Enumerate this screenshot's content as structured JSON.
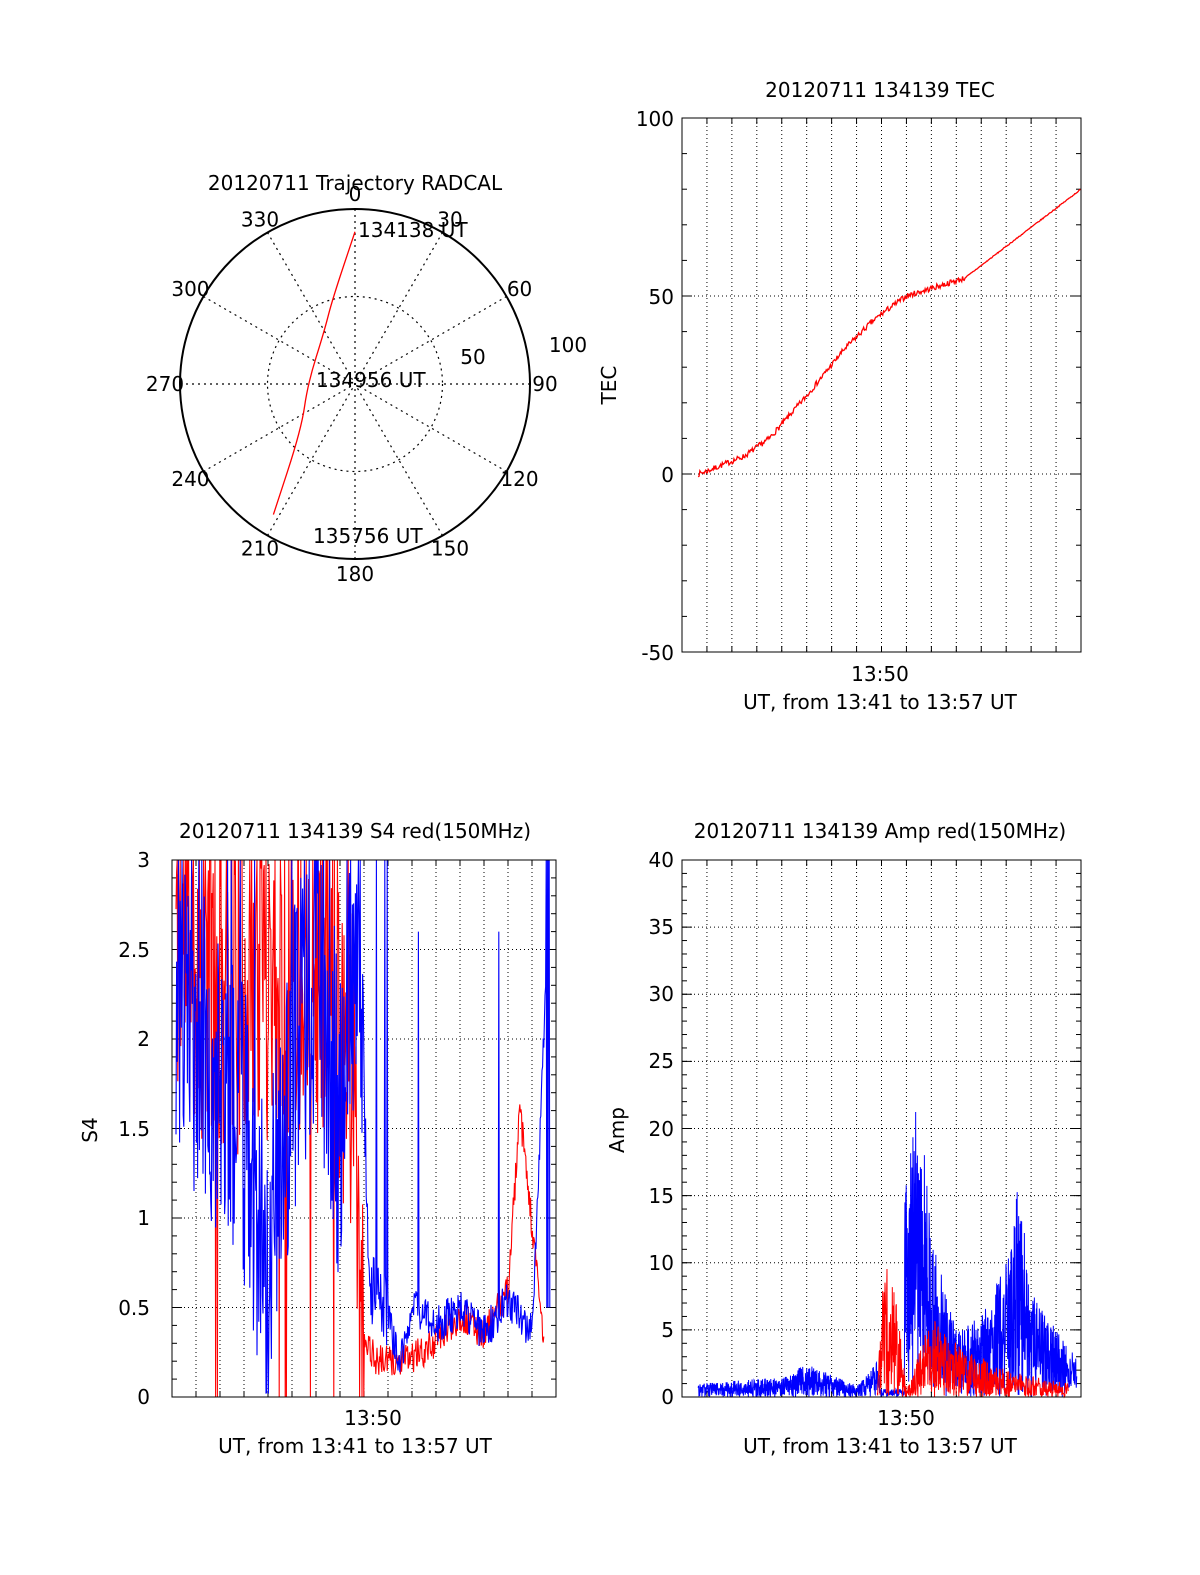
{
  "colors": {
    "series_a": "#ff0000",
    "series_b": "#0000ff",
    "axis": "#000000",
    "grid": "#000000"
  },
  "chart_data": [
    {
      "id": "trajectory",
      "type": "polar-trajectory",
      "title": "20120711 Trajectory RADCAL",
      "azimuth_labels": [
        "0",
        "30",
        "60",
        "90",
        "120",
        "150",
        "180",
        "210",
        "240",
        "270",
        "300",
        "330"
      ],
      "radial_labels": [
        "50",
        "100"
      ],
      "radial_range": [
        0,
        100
      ],
      "grid": true,
      "series": [
        {
          "color": "red",
          "points": [
            {
              "az": 0,
              "r": 87
            },
            {
              "az": 345,
              "r": 50
            },
            {
              "az": 330,
              "r": 35
            },
            {
              "az": 270,
              "r": 27
            },
            {
              "az": 230,
              "r": 40
            },
            {
              "az": 212,
              "r": 88
            }
          ]
        }
      ],
      "annotations": [
        {
          "text": "134138 UT",
          "at": "start"
        },
        {
          "text": "134956 UT",
          "at": "center"
        },
        {
          "text": "135756 UT",
          "at": "end"
        }
      ]
    },
    {
      "id": "tec",
      "type": "line",
      "title": "20120711 134139 TEC",
      "xlabel": "UT, from 13:41 to 13:57 UT",
      "ylabel": "TEC",
      "xlim": [
        "13:41",
        "13:57"
      ],
      "ylim": [
        -50,
        100
      ],
      "yticks": [
        "-50",
        "0",
        "50",
        "100"
      ],
      "xticks": [
        "13:50"
      ],
      "grid": true,
      "series": [
        {
          "color": "red",
          "x": [
            "13:41:39",
            "13:42:00",
            "13:43:30",
            "13:44:30",
            "13:46:00",
            "13:47:30",
            "13:48:30",
            "13:49:00",
            "13:50:00",
            "13:52:20",
            "13:57:00"
          ],
          "y": [
            0,
            0.8,
            5,
            10,
            22,
            35,
            42,
            45,
            50,
            55,
            80
          ]
        }
      ]
    },
    {
      "id": "s4",
      "type": "line",
      "title": "20120711 134139 S4 red(150MHz)",
      "xlabel": "UT, from 13:41 to 13:57 UT",
      "ylabel": "S4",
      "xlim": [
        "13:41",
        "13:57"
      ],
      "ylim": [
        0,
        3
      ],
      "yticks": [
        "0",
        "0.5",
        "1",
        "1.5",
        "2",
        "2.5",
        "3"
      ],
      "xticks": [
        "13:50"
      ],
      "grid": true,
      "series": [
        {
          "color": "red",
          "x": [
            "13:41:10",
            "13:43:00",
            "13:45:00",
            "13:47:00",
            "13:48:30",
            "13:49:00",
            "13:49:30",
            "13:50:30",
            "13:51:30",
            "13:53:00",
            "13:54:00",
            "13:55:00",
            "13:55:30",
            "13:56:30"
          ],
          "y": [
            2.7,
            2.4,
            2.5,
            2.6,
            2.0,
            0.35,
            0.2,
            0.2,
            0.25,
            0.45,
            0.35,
            0.6,
            1.6,
            0.3
          ]
        },
        {
          "color": "blue",
          "x": [
            "13:41:10",
            "13:42:30",
            "13:44:00",
            "13:45:00",
            "13:46:00",
            "13:47:00",
            "13:48:00",
            "13:48:45",
            "13:49:15",
            "13:49:45",
            "13:50:30",
            "13:51:00",
            "13:52:00",
            "13:53:00",
            "13:54:00",
            "13:55:00",
            "13:56:00",
            "13:56:45"
          ],
          "y": [
            2.2,
            1.9,
            1.5,
            0.8,
            1.8,
            2.5,
            1.5,
            2.8,
            0.6,
            0.55,
            0.2,
            0.5,
            0.4,
            0.5,
            0.35,
            0.55,
            0.35,
            2.9
          ]
        }
      ]
    },
    {
      "id": "amp",
      "type": "line",
      "title": "20120711 134139 Amp red(150MHz)",
      "xlabel": "UT, from 13:41 to 13:57 UT",
      "ylabel": "Amp",
      "xlim": [
        "13:41",
        "13:57"
      ],
      "ylim": [
        0,
        40
      ],
      "yticks": [
        "0",
        "5",
        "10",
        "15",
        "20",
        "25",
        "30",
        "35",
        "40"
      ],
      "xticks": [
        "13:50"
      ],
      "grid": true,
      "series": [
        {
          "color": "red",
          "x": [
            "13:48:50",
            "13:49:00",
            "13:49:30",
            "13:50:00",
            "13:51:00",
            "13:52:00",
            "13:54:00",
            "13:56:30"
          ],
          "y": [
            0.5,
            10,
            9,
            0.5,
            6,
            4,
            2,
            1
          ]
        },
        {
          "color": "blue",
          "x": [
            "13:41:39",
            "13:43:00",
            "13:45:00",
            "13:46:00",
            "13:48:00",
            "13:49:00",
            "13:50:30",
            "13:51:00",
            "13:52:00",
            "13:53:00",
            "13:54:00",
            "13:54:30",
            "13:55:00",
            "13:56:00",
            "13:56:50"
          ],
          "y": [
            1,
            1.2,
            1.5,
            2.5,
            0.8,
            3,
            23,
            12,
            5,
            6,
            10,
            16,
            8,
            5,
            3
          ]
        }
      ]
    }
  ]
}
